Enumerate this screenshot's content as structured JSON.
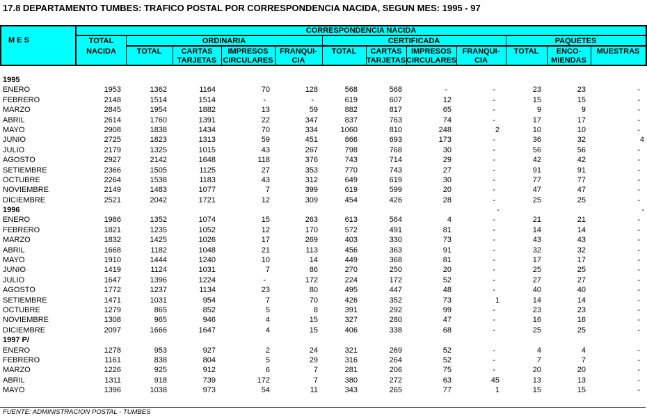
{
  "title": "17.8  DEPARTAMENTO TUMBES: TRAFICO POSTAL POR CORRESPONDENCIA NACIDA, SEGUN MES: 1995 - 97",
  "header": {
    "mes": "M E S",
    "correspondencia": "CORRESPONDENCIA NACIDA",
    "total_nacida_1": "TOTAL",
    "total_nacida_2": "NACIDA",
    "ordinaria": "ORDINARIA",
    "certificada": "CERTIFICADA",
    "paquetes": "PAQUETES",
    "ord_cols": [
      "TOTAL",
      "CARTAS TARJETAS",
      "IMPRESOS CIRCULARES",
      "FRANQUI- CIA"
    ],
    "cert_cols": [
      "TOTAL",
      "CARTAS TARJETAS",
      "IMPRESOS CIRCULARES",
      "FRANQUI- CIA"
    ],
    "paq_cols": [
      "TOTAL",
      "ENCO- MIENDAS",
      "MUESTRAS"
    ]
  },
  "sections": [
    {
      "year": "1995",
      "year_cells": [
        "",
        "",
        "",
        "",
        "",
        "",
        "",
        "",
        "",
        "",
        "",
        ""
      ],
      "rows": [
        [
          "ENERO",
          "1953",
          "1362",
          "1164",
          "70",
          "128",
          "568",
          "568",
          "-",
          "-",
          "23",
          "23",
          "-"
        ],
        [
          "FEBRERO",
          "2148",
          "1514",
          "1514",
          "-",
          "-",
          "619",
          "607",
          "12",
          "-",
          "15",
          "15",
          "-"
        ],
        [
          "MARZO",
          "2845",
          "1954",
          "1882",
          "13",
          "59",
          "882",
          "817",
          "65",
          "-",
          "9",
          "9",
          "-"
        ],
        [
          "ABRIL",
          "2614",
          "1760",
          "1391",
          "22",
          "347",
          "837",
          "763",
          "74",
          "-",
          "17",
          "17",
          "-"
        ],
        [
          "MAYO",
          "2908",
          "1838",
          "1434",
          "70",
          "334",
          "1060",
          "810",
          "248",
          "2",
          "10",
          "10",
          "-"
        ],
        [
          "JUNIO",
          "2725",
          "1823",
          "1313",
          "59",
          "451",
          "866",
          "693",
          "173",
          "-",
          "36",
          "32",
          "4"
        ],
        [
          "JULIO",
          "2179",
          "1325",
          "1015",
          "43",
          "267",
          "798",
          "768",
          "30",
          "-",
          "56",
          "56",
          "-"
        ],
        [
          "AGOSTO",
          "2927",
          "2142",
          "1648",
          "118",
          "376",
          "743",
          "714",
          "29",
          "-",
          "42",
          "42",
          "-"
        ],
        [
          "SETIEMBRE",
          "2366",
          "1505",
          "1125",
          "27",
          "353",
          "770",
          "743",
          "27",
          "-",
          "91",
          "91",
          "-"
        ],
        [
          "OCTUBRE",
          "2264",
          "1538",
          "1183",
          "43",
          "312",
          "649",
          "619",
          "30",
          "-",
          "77",
          "77",
          "-"
        ],
        [
          "NOVIEMBRE",
          "2149",
          "1483",
          "1077",
          "7",
          "399",
          "619",
          "599",
          "20",
          "-",
          "47",
          "47",
          "-"
        ],
        [
          "DICIEMBRE",
          "2521",
          "2042",
          "1721",
          "12",
          "309",
          "454",
          "426",
          "28",
          "-",
          "25",
          "25",
          "-"
        ]
      ]
    },
    {
      "year": "1996",
      "year_cells": [
        "",
        "",
        "",
        "",
        "",
        "",
        "",
        "",
        "-",
        "",
        "",
        "-"
      ],
      "rows": [
        [
          "ENERO",
          "1986",
          "1352",
          "1074",
          "15",
          "263",
          "613",
          "564",
          "4",
          "-",
          "21",
          "21",
          "-"
        ],
        [
          "FEBRERO",
          "1821",
          "1235",
          "1052",
          "12",
          "170",
          "572",
          "491",
          "81",
          "-",
          "14",
          "14",
          "-"
        ],
        [
          "MARZO",
          "1832",
          "1425",
          "1026",
          "17",
          "269",
          "403",
          "330",
          "73",
          "-",
          "43",
          "43",
          "-"
        ],
        [
          "ABRIL",
          "1668",
          "1182",
          "1048",
          "21",
          "113",
          "456",
          "363",
          "91",
          "-",
          "32",
          "32",
          "-"
        ],
        [
          "MAYO",
          "1910",
          "1444",
          "1240",
          "10",
          "14",
          "449",
          "368",
          "81",
          "-",
          "17",
          "17",
          "-"
        ],
        [
          "JUNIO",
          "1419",
          "1124",
          "1031",
          "7",
          "86",
          "270",
          "250",
          "20",
          "-",
          "25",
          "25",
          "-"
        ],
        [
          "JULIO",
          "1647",
          "1396",
          "1224",
          "-",
          "172",
          "224",
          "172",
          "52",
          "-",
          "27",
          "27",
          "-"
        ],
        [
          "AGOSTO",
          "1772",
          "1237",
          "1134",
          "23",
          "80",
          "495",
          "447",
          "48",
          "-",
          "40",
          "40",
          "-"
        ],
        [
          "SETIEMBRE",
          "1471",
          "1031",
          "954",
          "7",
          "70",
          "426",
          "352",
          "73",
          "1",
          "14",
          "14",
          "-"
        ],
        [
          "OCTUBRE",
          "1279",
          "865",
          "852",
          "5",
          "8",
          "391",
          "292",
          "99",
          "-",
          "23",
          "23",
          "-"
        ],
        [
          "NOVIEMBRE",
          "1308",
          "965",
          "946",
          "4",
          "15",
          "327",
          "280",
          "47",
          "-",
          "16",
          "16",
          "-"
        ],
        [
          "DICIEMBRE",
          "2097",
          "1666",
          "1647",
          "4",
          "15",
          "406",
          "338",
          "68",
          "-",
          "25",
          "25",
          "-"
        ]
      ]
    },
    {
      "year": "1997 P/",
      "year_cells": [
        "",
        "",
        "",
        "",
        "",
        "",
        "",
        "",
        "",
        "",
        "",
        ""
      ],
      "rows": [
        [
          "ENERO",
          "1278",
          "953",
          "927",
          "2",
          "24",
          "321",
          "269",
          "52",
          "-",
          "4",
          "4",
          "-"
        ],
        [
          "FEBRERO",
          "1161",
          "838",
          "804",
          "5",
          "29",
          "316",
          "264",
          "52",
          "-",
          "7",
          "7",
          "-"
        ],
        [
          "MARZO",
          "1226",
          "925",
          "912",
          "6",
          "7",
          "281",
          "206",
          "75",
          "-",
          "20",
          "20",
          "-"
        ],
        [
          "ABRIL",
          "1311",
          "918",
          "739",
          "172",
          "7",
          "380",
          "272",
          "63",
          "45",
          "13",
          "13",
          "-"
        ],
        [
          "MAYO",
          "1396",
          "1038",
          "973",
          "54",
          "11",
          "343",
          "265",
          "77",
          "1",
          "15",
          "15",
          "-"
        ]
      ]
    }
  ],
  "source": "FUENTE: ADMINISTRACION POSTAL - TUMBES",
  "colors": {
    "header_bg": "#00ffff"
  }
}
